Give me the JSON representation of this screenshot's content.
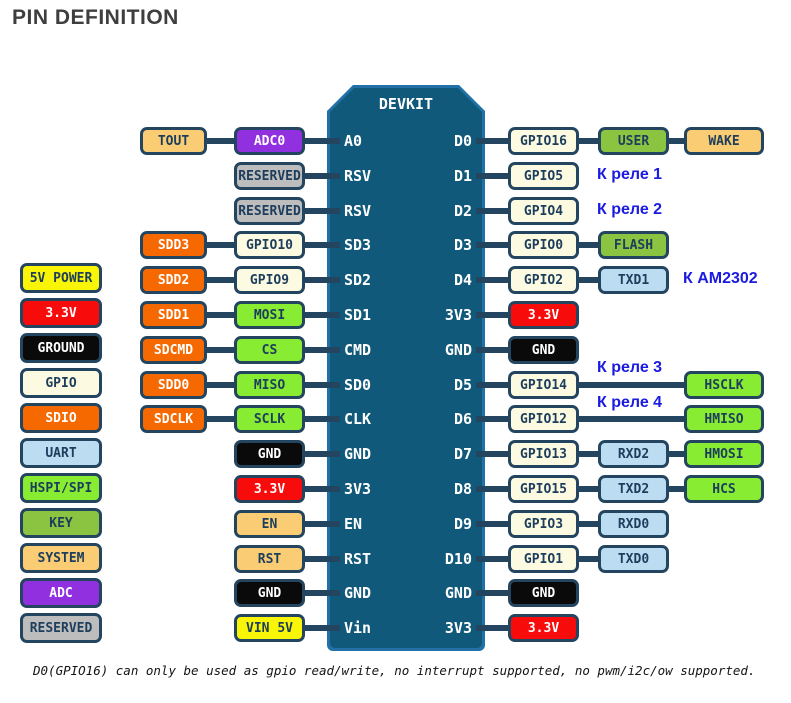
{
  "title": "PIN DEFINITION",
  "chip": {
    "title": "DEVKIT"
  },
  "palette": {
    "border_navy": "#24455f",
    "chip_body": "#11597b",
    "chip_border": "#2171a8",
    "annotation_blue": "#1a1ae0",
    "text_navy": "#1d3d5c",
    "sdio_orange": "#f56900",
    "hspi_green": "#87ec32",
    "key_green": "#8bc440",
    "uart_blue": "#bbdcf1",
    "adc_purple": "#9130df",
    "power5v_yellow": "#f9f506",
    "v33_red": "#f80b0b",
    "ground_black": "#0a0a0a",
    "gpio_cream": "#fcfae1",
    "system_amber": "#facd74",
    "reserved_gray": "#bdbdbd"
  },
  "legend": [
    {
      "label": "5V POWER",
      "color": "#f9f506"
    },
    {
      "label": "3.3V",
      "color": "#f80b0b"
    },
    {
      "label": "GROUND",
      "color": "#0a0a0a"
    },
    {
      "label": "GPIO",
      "color": "#fcfae1"
    },
    {
      "label": "SDIO",
      "color": "#f56900"
    },
    {
      "label": "UART",
      "color": "#bbdcf1"
    },
    {
      "label": "HSPI/SPI",
      "color": "#87ec32"
    },
    {
      "label": "KEY",
      "color": "#8bc440"
    },
    {
      "label": "SYSTEM",
      "color": "#facd74"
    },
    {
      "label": "ADC",
      "color": "#9130df"
    },
    {
      "label": "RESERVED",
      "color": "#bdbdbd"
    }
  ],
  "rows": [
    {
      "left_pin": "A0",
      "right_pin": "D0",
      "left_outer": "TOUT",
      "left_inner": "ADC0",
      "right_1": "GPIO16",
      "right_2": "USER",
      "right_3": "WAKE"
    },
    {
      "left_pin": "RSV",
      "right_pin": "D1",
      "left_inner": "RESERVED",
      "right_1": "GPIO5",
      "annotation": "К реле 1"
    },
    {
      "left_pin": "RSV",
      "right_pin": "D2",
      "left_inner": "RESERVED",
      "right_1": "GPIO4",
      "annotation": "К реле 2"
    },
    {
      "left_pin": "SD3",
      "right_pin": "D3",
      "left_outer": "SDD3",
      "left_inner": "GPIO10",
      "right_1": "GPIO0",
      "right_2": "FLASH"
    },
    {
      "left_pin": "SD2",
      "right_pin": "D4",
      "left_outer": "SDD2",
      "left_inner": "GPIO9",
      "right_1": "GPIO2",
      "right_2": "TXD1",
      "annotation": "К AM2302"
    },
    {
      "left_pin": "SD1",
      "right_pin": "3V3",
      "left_outer": "SDD1",
      "left_inner": "MOSI",
      "right_1": "3.3V"
    },
    {
      "left_pin": "CMD",
      "right_pin": "GND",
      "left_outer": "SDCMD",
      "left_inner": "CS",
      "right_1": "GND"
    },
    {
      "left_pin": "SD0",
      "right_pin": "D5",
      "left_outer": "SDD0",
      "left_inner": "MISO",
      "right_1": "GPIO14",
      "right_3": "HSCLK",
      "annotation": "К реле 3"
    },
    {
      "left_pin": "CLK",
      "right_pin": "D6",
      "left_outer": "SDCLK",
      "left_inner": "SCLK",
      "right_1": "GPIO12",
      "right_3": "HMISO",
      "annotation": "К реле 4"
    },
    {
      "left_pin": "GND",
      "right_pin": "D7",
      "left_inner": "GND",
      "right_1": "GPIO13",
      "right_2": "RXD2",
      "right_3": "HMOSI"
    },
    {
      "left_pin": "3V3",
      "right_pin": "D8",
      "left_inner": "3.3V",
      "right_1": "GPIO15",
      "right_2": "TXD2",
      "right_3": "HCS"
    },
    {
      "left_pin": "EN",
      "right_pin": "D9",
      "left_inner": "EN",
      "right_1": "GPIO3",
      "right_2": "RXD0"
    },
    {
      "left_pin": "RST",
      "right_pin": "D10",
      "left_inner": "RST",
      "right_1": "GPIO1",
      "right_2": "TXD0"
    },
    {
      "left_pin": "GND",
      "right_pin": "GND",
      "left_inner": "GND",
      "right_1": "GND"
    },
    {
      "left_pin": "Vin",
      "right_pin": "3V3",
      "left_inner": "VIN 5V",
      "right_1": "3.3V"
    }
  ],
  "footnote": "D0(GPIO16) can only be used as gpio read/write, no interrupt supported, no pwm/i2c/ow supported."
}
